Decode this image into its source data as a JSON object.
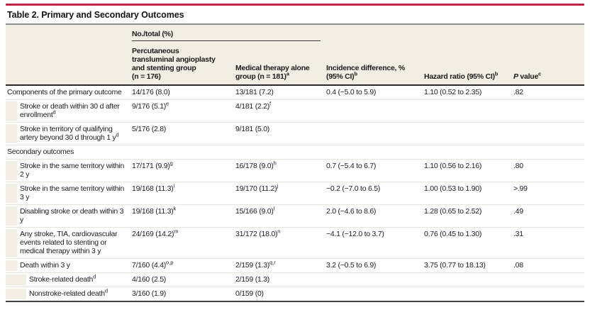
{
  "colors": {
    "accent_bar": "#c22447",
    "title_rule": "#8c8c8c",
    "header_background": "#f2eee3",
    "header_bottom_rule": "#2b2b2b",
    "row_hairline": "#e7e4dc",
    "bottom_rule": "#454545",
    "text": "#1c1c1c"
  },
  "table": {
    "title": "Table 2. Primary and Secondary Outcomes",
    "spanner": "No./total (%)",
    "columns": [
      {
        "lines": [
          ""
        ]
      },
      {
        "lines": [
          "Percutaneous",
          "transluminal angioplasty",
          "and stenting group",
          "(n = 176)"
        ]
      },
      {
        "lines": [
          "Medical therapy alone",
          "group (n = 181)^a"
        ]
      },
      {
        "lines": [
          "Incidence difference, %",
          "(95% CI)^b"
        ]
      },
      {
        "lines": [
          "Hazard ratio (95% CI)^b"
        ]
      },
      {
        "lines": [
          "P value^c"
        ],
        "italic_first": true
      }
    ],
    "rows": [
      {
        "label": "Components of the primary outcome",
        "indent": 0,
        "values": [
          "14/176 (8.0)",
          "13/181 (7.2)",
          "0.4 (−5.0 to 5.9)",
          "1.10 (0.52 to 2.35)",
          ".82"
        ]
      },
      {
        "label": "Stroke or death within 30 d after enrollment^d",
        "indent": 1,
        "values": [
          "9/176 (5.1)^e",
          "4/181 (2.2)^f",
          "",
          "",
          ""
        ]
      },
      {
        "label": "Stroke in territory of qualifying artery beyond 30 d through 1 y^d",
        "indent": 1,
        "values": [
          "5/176 (2.8)",
          "9/181 (5.0)",
          "",
          "",
          ""
        ]
      },
      {
        "label": "Secondary outcomes",
        "indent": 0,
        "values": [
          "",
          "",
          "",
          "",
          ""
        ]
      },
      {
        "label": "Stroke in the same territory within 2 y",
        "indent": 1,
        "values": [
          "17/171 (9.9)^g",
          "16/178 (9.0)^h",
          "0.7 (−5.4 to 6.7)",
          "1.10 (0.56 to 2.16)",
          ".80"
        ]
      },
      {
        "label": "Stroke in the same territory within 3 y",
        "indent": 1,
        "values": [
          "19/168 (11.3)^i",
          "19/170 (11.2)^j",
          "−0.2 (−7.0 to 6.5)",
          "1.00 (0.53 to 1.90)",
          ">.99"
        ]
      },
      {
        "label": "Disabling stroke or death within 3 y",
        "indent": 1,
        "values": [
          "19/168 (11.3)^k",
          "15/166 (9.0)^l",
          "2.0 (−4.6 to 8.6)",
          "1.28 (0.65 to 2.52)",
          ".49"
        ]
      },
      {
        "label": "Any stroke, TIA, cardiovascular events related to stenting or medical therapy within 3 y",
        "indent": 1,
        "values": [
          "24/169 (14.2)^m",
          "31/172 (18.0)^n",
          "−4.1 (−12.0 to 3.7)",
          "0.76 (0.45 to 1.30)",
          ".31"
        ]
      },
      {
        "label": "Death within 3 y",
        "indent": 1,
        "values": [
          "7/160 (4.4)^o,p",
          "2/159 (1.3)^q,r",
          "3.2 (−0.5 to 6.9)",
          "3.75 (0.77 to 18.13)",
          ".08"
        ]
      },
      {
        "label": "Stroke-related death^d",
        "indent": 2,
        "values": [
          "4/160 (2.5)",
          "2/159 (1.3)",
          "",
          "",
          ""
        ]
      },
      {
        "label": "Nonstroke-related death^d",
        "indent": 2,
        "values": [
          "3/160 (1.9)",
          "0/159 (0)",
          "",
          "",
          ""
        ]
      }
    ]
  }
}
